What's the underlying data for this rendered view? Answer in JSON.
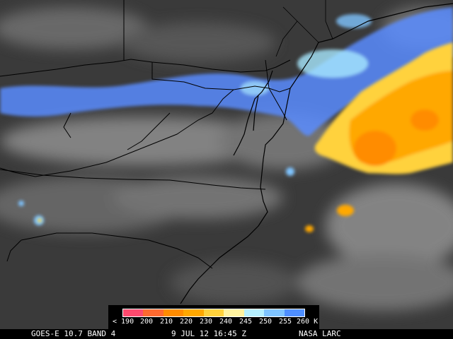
{
  "footer": {
    "satellite": "GOES-E 10.7 BAND 4",
    "datetime": "9 JUL 12 16:45 Z",
    "source": "NASA LARC"
  },
  "legend": {
    "labels": [
      "< 190",
      "200",
      "210",
      "220",
      "230",
      "240",
      "245",
      "250",
      "255",
      "260 K"
    ],
    "colors": [
      "#ff4a6e",
      "#ff6a30",
      "#ff8c00",
      "#ffa800",
      "#ffd23c",
      "#fff3a0",
      "#b6f0ff",
      "#7fc4ff",
      "#4f8fff"
    ]
  },
  "colors": {
    "background_gray": "#3a3a3a",
    "haze_gray": "#7a7a7a",
    "borders": "#000000"
  }
}
